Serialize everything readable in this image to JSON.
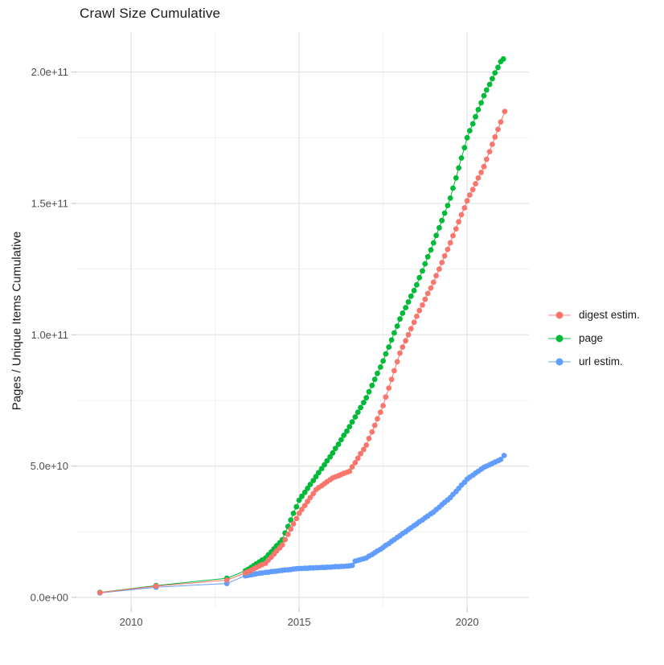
{
  "title": "Crawl Size Cumulative",
  "axes": {
    "y_label": "Pages / Unique Items Cumulative",
    "y_tick_labels": [
      "0.0e+00",
      "5.0e+10",
      "1.0e+11",
      "1.5e+11",
      "2.0e+11"
    ],
    "x_tick_labels": [
      "2010",
      "2015",
      "2020"
    ]
  },
  "legend": {
    "items": [
      {
        "label": "digest estim.",
        "color": "#F8766D"
      },
      {
        "label": "page",
        "color": "#00BA38"
      },
      {
        "label": "url estim.",
        "color": "#619CFF"
      }
    ]
  },
  "colors": {
    "digest": "#F8766D",
    "page": "#00BA38",
    "url": "#619CFF",
    "grid_major": "#e3e3e3",
    "grid_minor": "#efefef",
    "axis_tick": "#c9c9c9",
    "tick_text": "#4d4d4d",
    "title_text": "#1a1a1a"
  },
  "chart_data": {
    "type": "scatter",
    "title": "Crawl Size Cumulative",
    "xlabel": "",
    "ylabel": "Pages / Unique Items Cumulative",
    "value_unit": "billions (1e9) of pages / unique items",
    "grid": true,
    "legend_position": "right",
    "x_range": [
      2008.37,
      2021.84
    ],
    "y_range_billions": [
      -3.7,
      215.2
    ],
    "x_major_ticks": [
      2010,
      2015,
      2020
    ],
    "x_minor_ticks": [
      2012.5,
      2017.5
    ],
    "y_major_ticks_billions": [
      0,
      50,
      100,
      150,
      200
    ],
    "y_minor_ticks_billions": [
      25,
      75,
      125,
      175
    ],
    "y_tick_labels": [
      "0.0e+00",
      "5.0e+10",
      "1.0e+11",
      "1.5e+11",
      "2.0e+11"
    ],
    "series": [
      {
        "name": "url estim.",
        "color": "#619CFF",
        "points": [
          [
            2009.07,
            1.7
          ],
          [
            2010.74,
            3.9
          ],
          [
            2012.85,
            5.3
          ],
          [
            2013.4,
            8.2
          ],
          [
            2013.48,
            8.4
          ],
          [
            2013.57,
            8.6
          ],
          [
            2013.65,
            8.8
          ],
          [
            2013.73,
            9.0
          ],
          [
            2013.82,
            9.2
          ],
          [
            2013.9,
            9.3
          ],
          [
            2014,
            9.5
          ],
          [
            2014.08,
            9.6
          ],
          [
            2014.17,
            9.8
          ],
          [
            2014.25,
            9.9
          ],
          [
            2014.33,
            10.0
          ],
          [
            2014.42,
            10.2
          ],
          [
            2014.5,
            10.3
          ],
          [
            2014.58,
            10.4
          ],
          [
            2014.67,
            10.5
          ],
          [
            2014.75,
            10.6
          ],
          [
            2014.83,
            10.8
          ],
          [
            2014.92,
            10.9
          ],
          [
            2015,
            11.0
          ],
          [
            2015.08,
            11.0
          ],
          [
            2015.17,
            11.1
          ],
          [
            2015.25,
            11.1
          ],
          [
            2015.33,
            11.2
          ],
          [
            2015.42,
            11.2
          ],
          [
            2015.5,
            11.3
          ],
          [
            2015.58,
            11.3
          ],
          [
            2015.67,
            11.4
          ],
          [
            2015.75,
            11.4
          ],
          [
            2015.83,
            11.5
          ],
          [
            2015.92,
            11.5
          ],
          [
            2016,
            11.6
          ],
          [
            2016.08,
            11.7
          ],
          [
            2016.17,
            11.7
          ],
          [
            2016.25,
            11.8
          ],
          [
            2016.33,
            11.8
          ],
          [
            2016.42,
            11.9
          ],
          [
            2016.5,
            12.0
          ],
          [
            2016.58,
            12.2
          ],
          [
            2016.67,
            13.8
          ],
          [
            2016.75,
            14.1
          ],
          [
            2016.83,
            14.4
          ],
          [
            2016.92,
            14.7
          ],
          [
            2017,
            15.0
          ],
          [
            2017.08,
            15.7
          ],
          [
            2017.17,
            16.3
          ],
          [
            2017.25,
            17.0
          ],
          [
            2017.33,
            17.7
          ],
          [
            2017.42,
            18.3
          ],
          [
            2017.5,
            19.0
          ],
          [
            2017.58,
            19.8
          ],
          [
            2017.67,
            20.5
          ],
          [
            2017.75,
            21.3
          ],
          [
            2017.83,
            22.0
          ],
          [
            2017.92,
            22.8
          ],
          [
            2018,
            23.5
          ],
          [
            2018.08,
            24.3
          ],
          [
            2018.17,
            25.0
          ],
          [
            2018.25,
            25.8
          ],
          [
            2018.33,
            26.5
          ],
          [
            2018.42,
            27.3
          ],
          [
            2018.5,
            28.0
          ],
          [
            2018.58,
            28.8
          ],
          [
            2018.67,
            29.5
          ],
          [
            2018.75,
            30.3
          ],
          [
            2018.83,
            31.0
          ],
          [
            2018.92,
            31.8
          ],
          [
            2019,
            32.5
          ],
          [
            2019.08,
            33.4
          ],
          [
            2019.17,
            34.3
          ],
          [
            2019.25,
            35.3
          ],
          [
            2019.33,
            36.2
          ],
          [
            2019.42,
            37.1
          ],
          [
            2019.5,
            38.0
          ],
          [
            2019.58,
            39.2
          ],
          [
            2019.67,
            40.3
          ],
          [
            2019.75,
            41.5
          ],
          [
            2019.83,
            42.7
          ],
          [
            2019.92,
            43.8
          ],
          [
            2020,
            45.0
          ],
          [
            2020.08,
            45.8
          ],
          [
            2020.17,
            46.5
          ],
          [
            2020.25,
            47.3
          ],
          [
            2020.33,
            48.0
          ],
          [
            2020.42,
            48.8
          ],
          [
            2020.5,
            49.5
          ],
          [
            2020.58,
            50.0
          ],
          [
            2020.67,
            50.5
          ],
          [
            2020.75,
            51.0
          ],
          [
            2020.83,
            51.5
          ],
          [
            2020.92,
            52.0
          ],
          [
            2021,
            52.5
          ],
          [
            2021.1,
            54.0
          ]
        ]
      },
      {
        "name": "page",
        "color": "#00BA38",
        "points": [
          [
            2009.07,
            1.9
          ],
          [
            2010.74,
            4.5
          ],
          [
            2012.85,
            7.3
          ],
          [
            2013.4,
            10.1
          ],
          [
            2013.48,
            10.7
          ],
          [
            2013.57,
            11.4
          ],
          [
            2013.65,
            12.1
          ],
          [
            2013.73,
            12.8
          ],
          [
            2013.82,
            13.5
          ],
          [
            2013.9,
            14.2
          ],
          [
            2014,
            15.0
          ],
          [
            2014.08,
            16.2
          ],
          [
            2014.17,
            17.3
          ],
          [
            2014.25,
            18.5
          ],
          [
            2014.33,
            19.7
          ],
          [
            2014.42,
            20.8
          ],
          [
            2014.5,
            22.0
          ],
          [
            2014.58,
            24.5
          ],
          [
            2014.67,
            27.0
          ],
          [
            2014.75,
            29.5
          ],
          [
            2014.83,
            32.0
          ],
          [
            2014.92,
            34.5
          ],
          [
            2015,
            37.0
          ],
          [
            2015.08,
            38.5
          ],
          [
            2015.17,
            40.0
          ],
          [
            2015.25,
            41.5
          ],
          [
            2015.33,
            43.0
          ],
          [
            2015.42,
            44.5
          ],
          [
            2015.5,
            46.0
          ],
          [
            2015.58,
            47.5
          ],
          [
            2015.67,
            49.0
          ],
          [
            2015.75,
            50.5
          ],
          [
            2015.83,
            52.0
          ],
          [
            2015.92,
            53.5
          ],
          [
            2016,
            55.0
          ],
          [
            2016.08,
            56.7
          ],
          [
            2016.17,
            58.3
          ],
          [
            2016.25,
            60.0
          ],
          [
            2016.33,
            61.7
          ],
          [
            2016.42,
            63.3
          ],
          [
            2016.5,
            65.0
          ],
          [
            2016.58,
            66.8
          ],
          [
            2016.67,
            68.7
          ],
          [
            2016.75,
            70.5
          ],
          [
            2016.83,
            72.3
          ],
          [
            2016.92,
            74.2
          ],
          [
            2017,
            76.0
          ],
          [
            2017.08,
            78.3
          ],
          [
            2017.17,
            80.7
          ],
          [
            2017.25,
            83.0
          ],
          [
            2017.33,
            85.3
          ],
          [
            2017.42,
            87.7
          ],
          [
            2017.5,
            90.0
          ],
          [
            2017.58,
            92.7
          ],
          [
            2017.67,
            95.3
          ],
          [
            2017.75,
            98.0
          ],
          [
            2017.83,
            100.7
          ],
          [
            2017.92,
            103.3
          ],
          [
            2018,
            106.0
          ],
          [
            2018.08,
            108.2
          ],
          [
            2018.17,
            110.3
          ],
          [
            2018.25,
            112.5
          ],
          [
            2018.33,
            114.7
          ],
          [
            2018.42,
            116.8
          ],
          [
            2018.5,
            119.0
          ],
          [
            2018.58,
            121.7
          ],
          [
            2018.67,
            124.3
          ],
          [
            2018.75,
            127.0
          ],
          [
            2018.83,
            129.7
          ],
          [
            2018.92,
            132.3
          ],
          [
            2019,
            135.0
          ],
          [
            2019.08,
            137.8
          ],
          [
            2019.17,
            140.7
          ],
          [
            2019.25,
            143.5
          ],
          [
            2019.33,
            146.3
          ],
          [
            2019.42,
            149.2
          ],
          [
            2019.5,
            152.0
          ],
          [
            2019.58,
            155.8
          ],
          [
            2019.67,
            159.7
          ],
          [
            2019.75,
            163.5
          ],
          [
            2019.83,
            167.3
          ],
          [
            2019.92,
            171.2
          ],
          [
            2020,
            175.0
          ],
          [
            2020.08,
            177.7
          ],
          [
            2020.17,
            180.3
          ],
          [
            2020.25,
            183.0
          ],
          [
            2020.33,
            185.7
          ],
          [
            2020.42,
            188.3
          ],
          [
            2020.5,
            191.0
          ],
          [
            2020.58,
            193.2
          ],
          [
            2020.67,
            195.3
          ],
          [
            2020.75,
            197.5
          ],
          [
            2020.83,
            199.7
          ],
          [
            2020.92,
            201.8
          ],
          [
            2021,
            204.0
          ],
          [
            2021.08,
            205.0
          ]
        ]
      },
      {
        "name": "digest estim.",
        "color": "#F8766D",
        "points": [
          [
            2009.07,
            1.8
          ],
          [
            2010.74,
            4.3
          ],
          [
            2012.85,
            6.6
          ],
          [
            2013.4,
            9.3
          ],
          [
            2013.48,
            9.8
          ],
          [
            2013.57,
            10.3
          ],
          [
            2013.65,
            10.9
          ],
          [
            2013.73,
            11.4
          ],
          [
            2013.82,
            12.0
          ],
          [
            2013.9,
            12.5
          ],
          [
            2014,
            13.0
          ],
          [
            2014.08,
            14.2
          ],
          [
            2014.17,
            15.3
          ],
          [
            2014.25,
            16.5
          ],
          [
            2014.33,
            17.7
          ],
          [
            2014.42,
            18.8
          ],
          [
            2014.5,
            20.0
          ],
          [
            2014.58,
            22.0
          ],
          [
            2014.67,
            24.0
          ],
          [
            2014.75,
            26.0
          ],
          [
            2014.83,
            28.0
          ],
          [
            2014.92,
            30.0
          ],
          [
            2015,
            32.0
          ],
          [
            2015.08,
            33.5
          ],
          [
            2015.17,
            35.0
          ],
          [
            2015.25,
            36.5
          ],
          [
            2015.33,
            38.0
          ],
          [
            2015.42,
            39.5
          ],
          [
            2015.5,
            41.0
          ],
          [
            2015.58,
            41.8
          ],
          [
            2015.67,
            42.5
          ],
          [
            2015.75,
            43.3
          ],
          [
            2015.83,
            44.0
          ],
          [
            2015.92,
            44.8
          ],
          [
            2016,
            45.5
          ],
          [
            2016.08,
            45.9
          ],
          [
            2016.17,
            46.3
          ],
          [
            2016.25,
            46.8
          ],
          [
            2016.33,
            47.2
          ],
          [
            2016.42,
            47.6
          ],
          [
            2016.5,
            48.0
          ],
          [
            2016.58,
            49.7
          ],
          [
            2016.67,
            51.3
          ],
          [
            2016.75,
            53.0
          ],
          [
            2016.83,
            54.7
          ],
          [
            2016.92,
            56.3
          ],
          [
            2017,
            58.0
          ],
          [
            2017.08,
            60.5
          ],
          [
            2017.17,
            63.0
          ],
          [
            2017.25,
            65.5
          ],
          [
            2017.33,
            68.0
          ],
          [
            2017.42,
            70.5
          ],
          [
            2017.5,
            73.0
          ],
          [
            2017.58,
            76.3
          ],
          [
            2017.67,
            79.7
          ],
          [
            2017.75,
            83.0
          ],
          [
            2017.83,
            86.3
          ],
          [
            2017.92,
            89.7
          ],
          [
            2018,
            93.0
          ],
          [
            2018.08,
            95.3
          ],
          [
            2018.17,
            97.7
          ],
          [
            2018.25,
            100.0
          ],
          [
            2018.33,
            102.3
          ],
          [
            2018.42,
            104.7
          ],
          [
            2018.5,
            107.0
          ],
          [
            2018.58,
            109.2
          ],
          [
            2018.67,
            111.3
          ],
          [
            2018.75,
            113.5
          ],
          [
            2018.83,
            115.7
          ],
          [
            2018.92,
            117.8
          ],
          [
            2019,
            120.0
          ],
          [
            2019.08,
            122.5
          ],
          [
            2019.17,
            125.0
          ],
          [
            2019.25,
            127.5
          ],
          [
            2019.33,
            130.0
          ],
          [
            2019.42,
            132.5
          ],
          [
            2019.5,
            135.0
          ],
          [
            2019.58,
            137.7
          ],
          [
            2019.67,
            140.3
          ],
          [
            2019.75,
            143.0
          ],
          [
            2019.83,
            145.7
          ],
          [
            2019.92,
            148.3
          ],
          [
            2020,
            151.0
          ],
          [
            2020.08,
            153.2
          ],
          [
            2020.17,
            155.3
          ],
          [
            2020.25,
            157.5
          ],
          [
            2020.33,
            159.7
          ],
          [
            2020.42,
            161.8
          ],
          [
            2020.5,
            164.0
          ],
          [
            2020.58,
            166.8
          ],
          [
            2020.67,
            169.7
          ],
          [
            2020.75,
            172.5
          ],
          [
            2020.83,
            175.3
          ],
          [
            2020.92,
            178.2
          ],
          [
            2021,
            181.0
          ],
          [
            2021.12,
            185.0
          ]
        ]
      }
    ]
  }
}
